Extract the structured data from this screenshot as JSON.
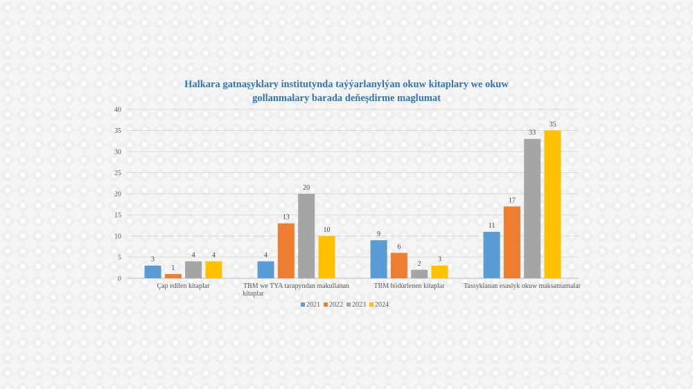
{
  "chart_data": {
    "type": "bar",
    "title_lines": [
      "Halkara gatnaşyklary institutynda taýýarlanylýan okuw kitaplary we okuw",
      "gollanmalary barada deňeşdirme maglumat"
    ],
    "categories": [
      [
        "Çap edilen  kitaplar"
      ],
      [
        "TBM we TYA tarapyndan makullanan",
        "kitaplar"
      ],
      [
        "TBM hödürlenen kitaplar"
      ],
      [
        "Tassyklanan esaslyk okuw maksatnamalar"
      ]
    ],
    "series": [
      {
        "name": "2021",
        "color": "#5b9bd5",
        "values": [
          3,
          4,
          9,
          11
        ]
      },
      {
        "name": "2022",
        "color": "#ed7d31",
        "values": [
          1,
          13,
          6,
          17
        ]
      },
      {
        "name": "2023",
        "color": "#a5a5a5",
        "values": [
          4,
          20,
          2,
          33
        ]
      },
      {
        "name": "2024",
        "color": "#ffc000",
        "values": [
          4,
          10,
          3,
          35
        ]
      }
    ],
    "ylim": [
      0,
      40
    ],
    "yticks": [
      0,
      5,
      10,
      15,
      20,
      25,
      30,
      35,
      40
    ],
    "grid": true,
    "legend_position": "bottom"
  }
}
